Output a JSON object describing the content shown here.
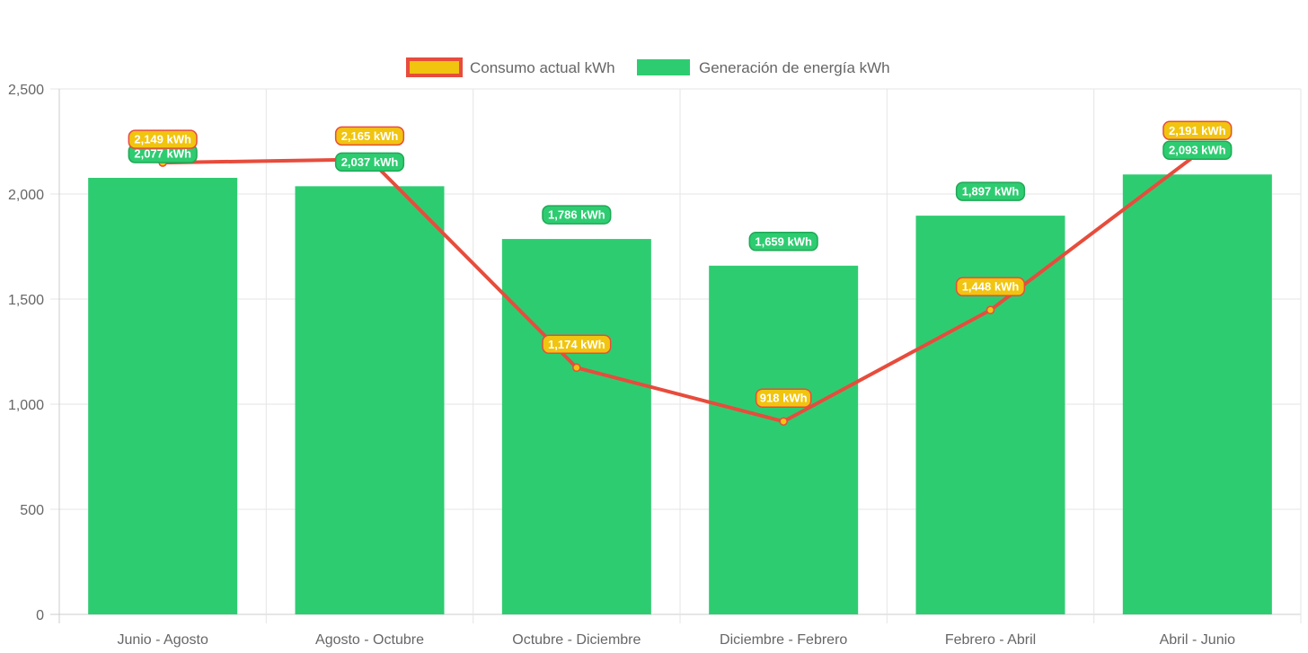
{
  "chart_data": {
    "type": "bar",
    "categories": [
      "Junio - Agosto",
      "Agosto - Octubre",
      "Octubre - Diciembre",
      "Diciembre - Febrero",
      "Febrero - Abril",
      "Abril - Junio"
    ],
    "series": [
      {
        "name": "Consumo actual kWh",
        "type": "line",
        "values": [
          2149,
          2165,
          1174,
          918,
          1448,
          2191
        ],
        "labels": [
          "2,149 kWh",
          "2,165 kWh",
          "1,174 kWh",
          "918 kWh",
          "1,448 kWh",
          "2,191 kWh"
        ],
        "line_color": "#e74c3c",
        "fill_color": "#f1c40f"
      },
      {
        "name": "Generación de energía kWh",
        "type": "bar",
        "values": [
          2077,
          2037,
          1786,
          1659,
          1897,
          2093
        ],
        "labels": [
          "2,077 kWh",
          "2,037 kWh",
          "1,786 kWh",
          "1,659 kWh",
          "1,897 kWh",
          "2,093 kWh"
        ],
        "color": "#2ecc71"
      }
    ],
    "ylim": [
      0,
      2500
    ],
    "yticks": [
      0,
      500,
      1000,
      1500,
      2000,
      2500
    ],
    "ytick_labels": [
      "0",
      "500",
      "1,000",
      "1,500",
      "2,000",
      "2,500"
    ],
    "grid": true,
    "legend_position": "top-center",
    "title": "",
    "xlabel": "",
    "ylabel": ""
  }
}
